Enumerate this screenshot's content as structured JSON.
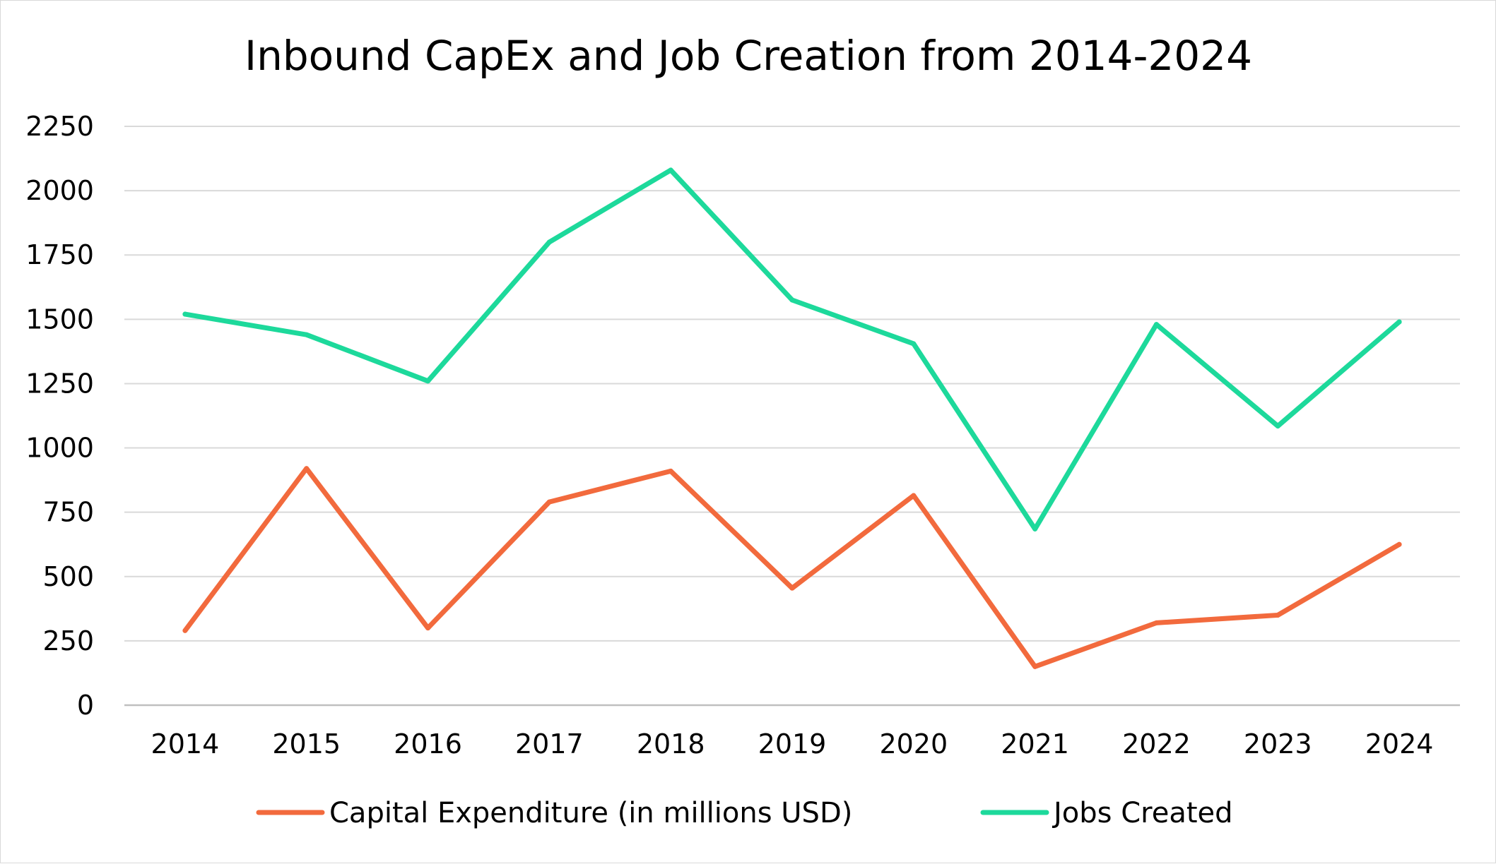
{
  "chart_data": {
    "type": "line",
    "title": "Inbound CapEx and Job Creation from 2014-2024",
    "xlabel": "",
    "ylabel": "",
    "categories": [
      "2014",
      "2015",
      "2016",
      "2017",
      "2018",
      "2019",
      "2020",
      "2021",
      "2022",
      "2023",
      "2024"
    ],
    "ylim": [
      0,
      2250
    ],
    "yticks": [
      "0",
      "250",
      "500",
      "750",
      "1000",
      "1250",
      "1500",
      "1750",
      "2000",
      "2250"
    ],
    "grid": true,
    "legend_position": "bottom",
    "series": [
      {
        "name": "Capital Expenditure (in millions USD)",
        "legend_label": "Capital Expenditure (in millions USD)",
        "color": "#f26a3d",
        "values": [
          290,
          920,
          300,
          790,
          910,
          455,
          815,
          150,
          320,
          350,
          625
        ]
      },
      {
        "name": "Jobs Created",
        "legend_label": "Jobs Created",
        "color": "#1dd99b",
        "values": [
          1520,
          1440,
          1260,
          1800,
          2080,
          1575,
          1405,
          685,
          1480,
          1085,
          1490
        ]
      }
    ]
  }
}
